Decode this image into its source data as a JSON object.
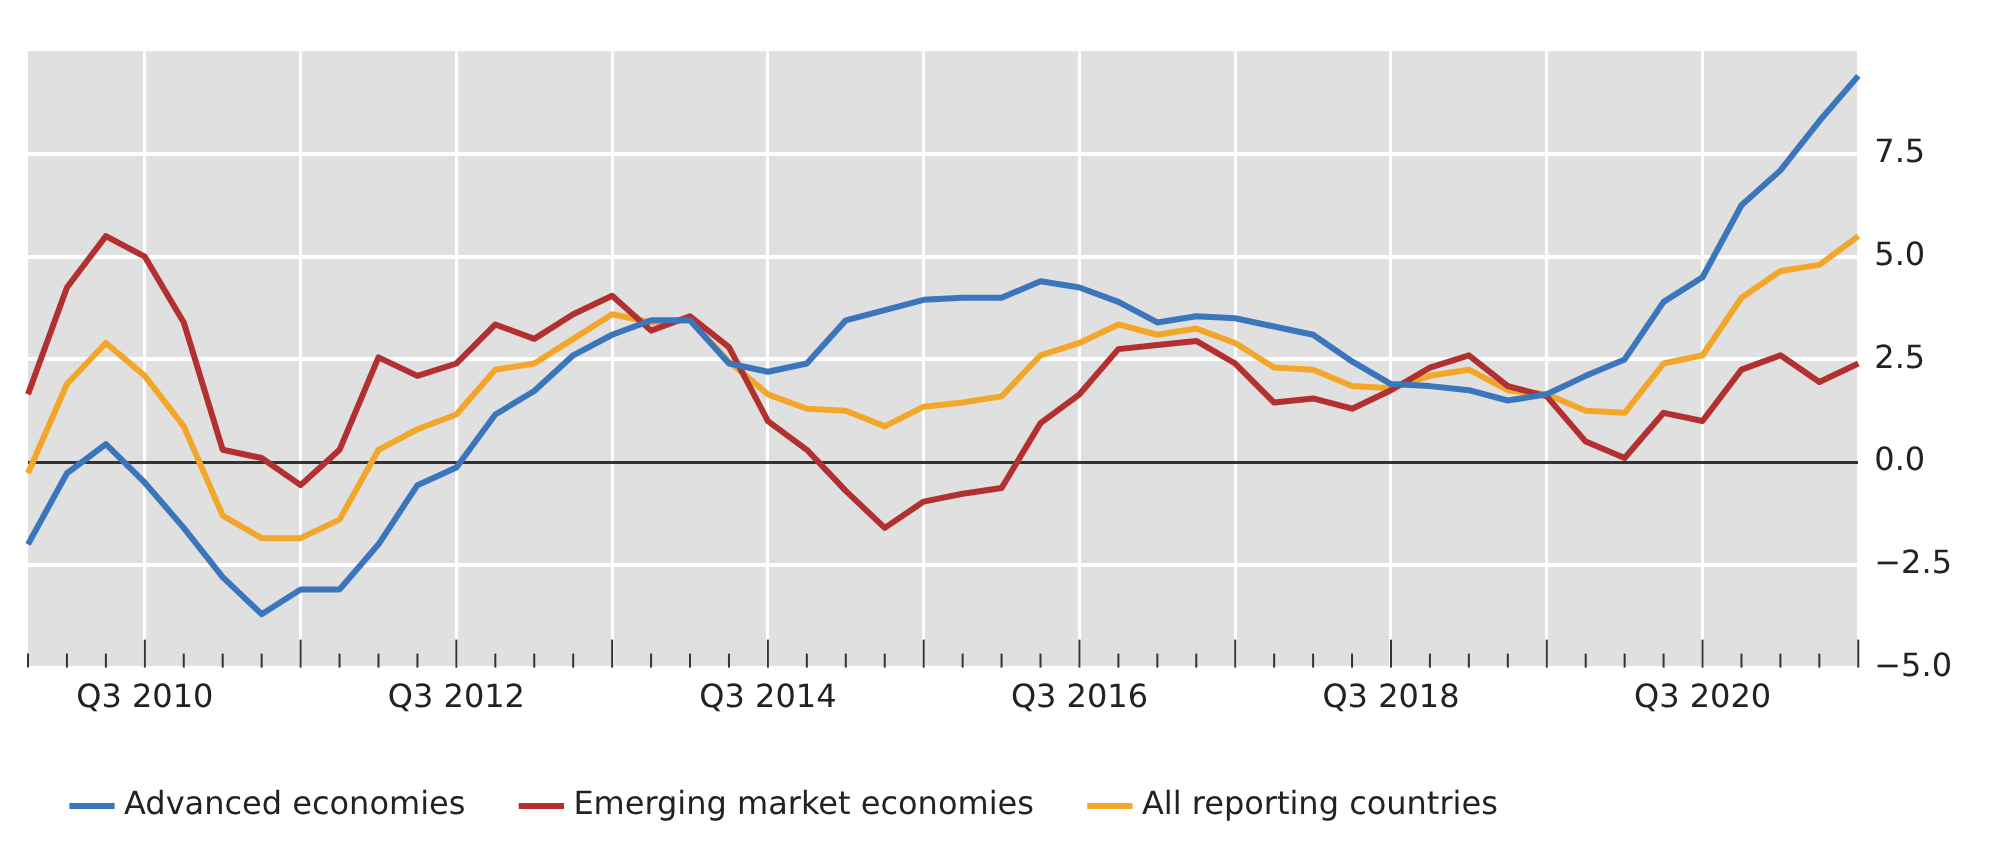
{
  "chart_data": {
    "type": "line",
    "categories": [
      null,
      null,
      null,
      "Q3 2010",
      null,
      null,
      null,
      null,
      null,
      null,
      null,
      "Q3 2012",
      null,
      null,
      null,
      null,
      null,
      null,
      null,
      "Q3 2014",
      null,
      null,
      null,
      null,
      null,
      null,
      null,
      "Q3 2016",
      null,
      null,
      null,
      null,
      null,
      null,
      null,
      "Q3 2018",
      null,
      null,
      null,
      null,
      null,
      null,
      null,
      "Q3 2020",
      null,
      null,
      null,
      null
    ],
    "series": [
      {
        "name": "Advanced economies",
        "color": "#3b75bb",
        "values": [
          -2.0,
          -0.27,
          0.44,
          -0.5,
          -1.6,
          -2.8,
          -3.7,
          -3.1,
          -3.1,
          -2.0,
          -0.56,
          -0.13,
          1.16,
          1.73,
          2.6,
          3.1,
          3.45,
          3.45,
          2.4,
          2.2,
          2.4,
          3.45,
          3.7,
          3.95,
          4.0,
          4.0,
          4.4,
          4.25,
          3.9,
          3.4,
          3.55,
          3.5,
          3.3,
          3.1,
          2.45,
          1.9,
          1.85,
          1.75,
          1.5,
          1.65,
          2.1,
          2.5,
          3.9,
          4.5,
          6.25,
          7.1,
          8.3,
          9.4
        ]
      },
      {
        "name": "Emerging market economies",
        "color": "#b2302f",
        "values": [
          1.65,
          4.25,
          5.5,
          5.0,
          3.4,
          0.3,
          0.1,
          -0.56,
          0.3,
          2.55,
          2.1,
          2.4,
          3.35,
          3.0,
          3.6,
          4.05,
          3.2,
          3.55,
          2.8,
          1.0,
          0.3,
          -0.7,
          -1.6,
          -0.96,
          -0.77,
          -0.63,
          0.95,
          1.65,
          2.75,
          2.85,
          2.95,
          2.4,
          1.45,
          1.55,
          1.3,
          1.75,
          2.3,
          2.6,
          1.85,
          1.6,
          0.5,
          0.1,
          1.2,
          1.0,
          2.25,
          2.6,
          1.95,
          2.4
        ]
      },
      {
        "name": "All reporting countries",
        "color": "#f2a72b",
        "values": [
          -0.27,
          1.9,
          2.9,
          2.1,
          0.87,
          -1.3,
          -1.85,
          -1.85,
          -1.4,
          0.3,
          0.8,
          1.16,
          2.25,
          2.4,
          3.0,
          3.6,
          3.4,
          3.45,
          2.45,
          1.65,
          1.3,
          1.25,
          0.87,
          1.35,
          1.45,
          1.6,
          2.6,
          2.9,
          3.35,
          3.1,
          3.25,
          2.9,
          2.3,
          2.25,
          1.85,
          1.8,
          2.1,
          2.25,
          1.75,
          1.65,
          1.25,
          1.2,
          2.4,
          2.6,
          4.0,
          4.65,
          4.8,
          5.5
        ]
      }
    ],
    "ylim": [
      -5,
      10
    ],
    "yticks": [
      {
        "value": -5,
        "label": "−5.0"
      },
      {
        "value": -2.5,
        "label": "−2.5"
      },
      {
        "value": 0,
        "label": "0.0"
      },
      {
        "value": 2.5,
        "label": "2.5"
      },
      {
        "value": 5,
        "label": "5.0"
      },
      {
        "value": 7.5,
        "label": "7.5"
      }
    ],
    "grid": true,
    "legend": "bottom",
    "marker": "none",
    "line_style": "solid"
  }
}
